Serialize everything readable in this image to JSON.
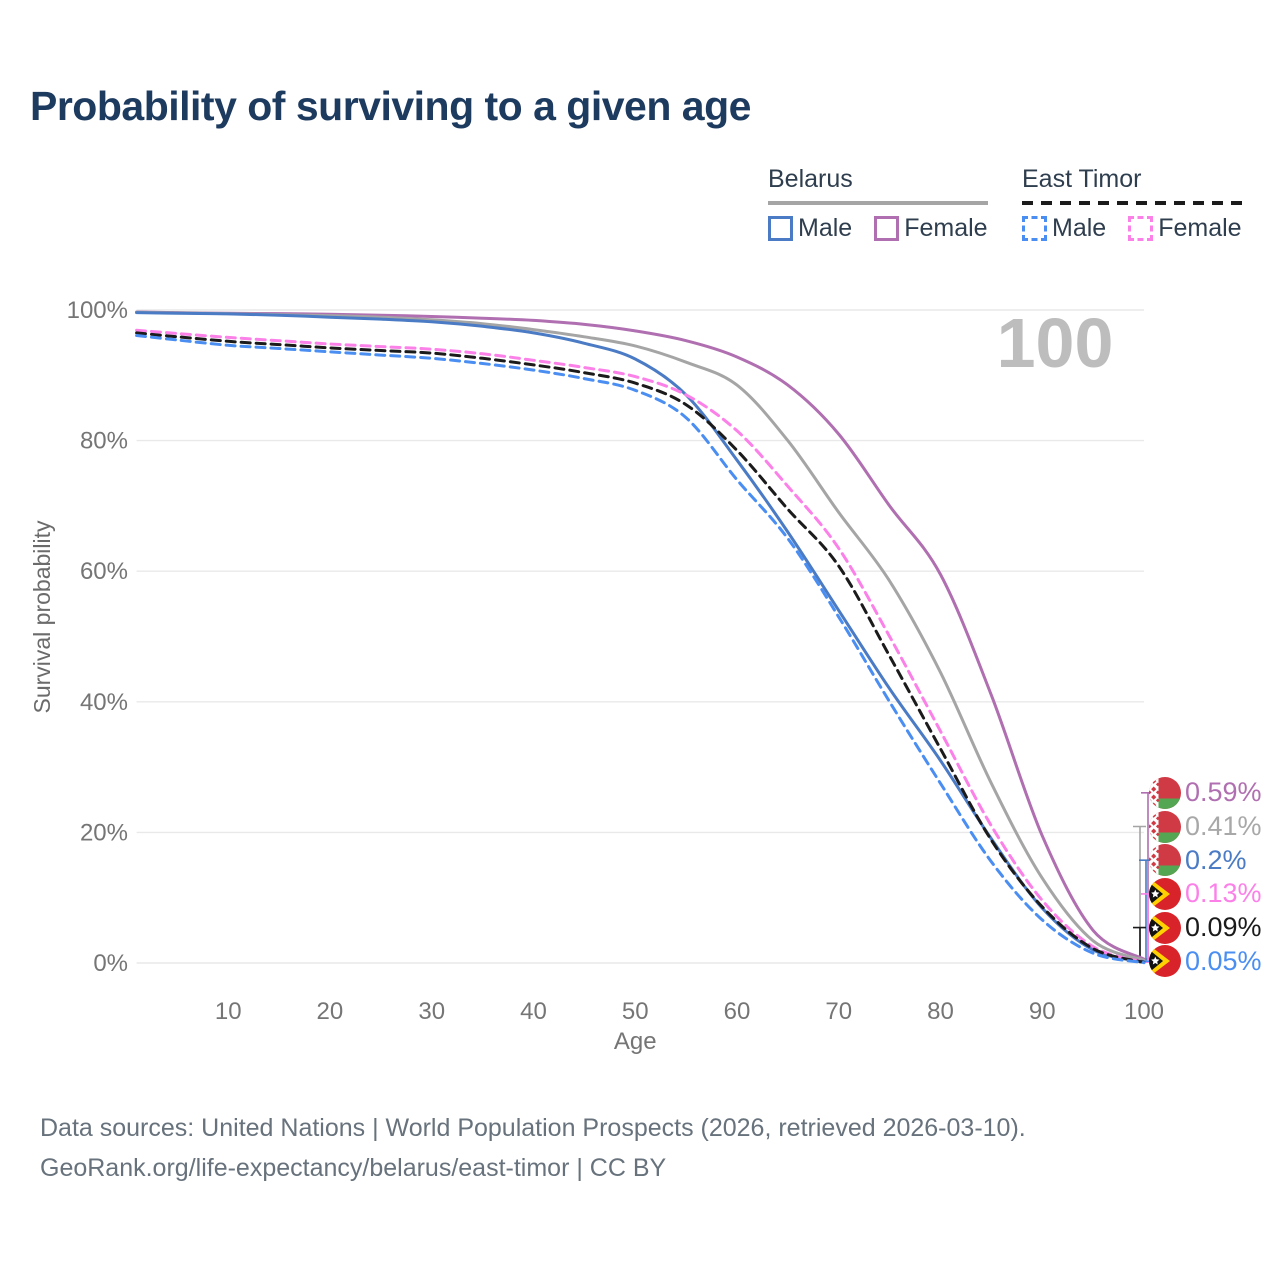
{
  "title": "Probability of surviving to a given age",
  "legend": {
    "groups": [
      {
        "country": "Belarus",
        "line_style": "solid",
        "underline_color": "#a5a5a5",
        "items": [
          {
            "label": "Male",
            "color": "#4a7bc4",
            "dashed": false
          },
          {
            "label": "Female",
            "color": "#b06fb0",
            "dashed": false
          }
        ]
      },
      {
        "country": "East Timor",
        "line_style": "dashed",
        "underline_color": "#1b1b1b",
        "items": [
          {
            "label": "Male",
            "color": "#4b8ef2",
            "dashed": true
          },
          {
            "label": "Female",
            "color": "#fb80e8",
            "dashed": true
          }
        ]
      }
    ]
  },
  "chart_data": {
    "type": "line",
    "title": "Probability of surviving to a given age",
    "xlabel": "Age",
    "ylabel": "Survival probability",
    "xlim": [
      1,
      100
    ],
    "ylim": [
      0,
      100
    ],
    "xticks": [
      10,
      20,
      30,
      40,
      50,
      60,
      70,
      80,
      90,
      100
    ],
    "yticks": [
      0,
      20,
      40,
      60,
      80,
      100
    ],
    "ytick_suffix": "%",
    "grid": "horizontal",
    "hover_age_label": "100",
    "hover_age_color": "#bdbdbd",
    "ages": [
      1,
      5,
      10,
      15,
      20,
      25,
      30,
      35,
      40,
      45,
      50,
      55,
      60,
      65,
      70,
      75,
      80,
      85,
      90,
      95,
      100
    ],
    "series": [
      {
        "name": "Belarus Female",
        "country": "Belarus",
        "sex": "Female",
        "flag": "belarus",
        "color": "#b06fb0",
        "dashed": false,
        "values": [
          99.7,
          99.6,
          99.5,
          99.45,
          99.35,
          99.2,
          99.0,
          98.75,
          98.4,
          97.8,
          96.8,
          95.3,
          92.8,
          88.5,
          81.0,
          70.0,
          59.5,
          41.0,
          19.5,
          5.0,
          0.59
        ],
        "end_label": "0.59%",
        "end_label_color": "#b06fb0"
      },
      {
        "name": "Belarus Both sexes",
        "country": "Belarus",
        "sex": "Both",
        "flag": "belarus",
        "color": "#a5a5a5",
        "dashed": false,
        "values": [
          99.65,
          99.55,
          99.45,
          99.3,
          99.15,
          98.9,
          98.5,
          97.9,
          97.0,
          95.9,
          94.5,
          92.0,
          88.5,
          80.0,
          69.0,
          58.5,
          44.5,
          27.5,
          13.0,
          3.4,
          0.41
        ],
        "end_label": "0.41%",
        "end_label_color": "#a8a8a8"
      },
      {
        "name": "Belarus Male",
        "country": "Belarus",
        "sex": "Male",
        "flag": "belarus",
        "color": "#4a7bc4",
        "dashed": false,
        "values": [
          99.6,
          99.5,
          99.4,
          99.2,
          98.9,
          98.6,
          98.2,
          97.5,
          96.5,
          94.9,
          92.5,
          87.0,
          77.0,
          66.0,
          54.0,
          42.0,
          31.0,
          19.0,
          8.4,
          2.0,
          0.2
        ],
        "end_label": "0.2%",
        "end_label_color": "#4a7bc4"
      },
      {
        "name": "East Timor Female",
        "country": "East Timor",
        "sex": "Female",
        "flag": "east-timor",
        "color": "#fb80e8",
        "dashed": true,
        "values": [
          96.9,
          96.4,
          95.8,
          95.3,
          94.8,
          94.4,
          94.0,
          93.3,
          92.3,
          91.2,
          89.8,
          87.0,
          81.5,
          73.0,
          63.5,
          50.0,
          35.5,
          21.0,
          9.6,
          2.5,
          0.13
        ],
        "end_label": "0.13%",
        "end_label_color": "#fb80e8"
      },
      {
        "name": "East Timor Both sexes",
        "country": "East Timor",
        "sex": "Both",
        "flag": "east-timor",
        "color": "#1b1b1b",
        "dashed": true,
        "values": [
          96.5,
          95.9,
          95.2,
          94.7,
          94.2,
          93.8,
          93.4,
          92.6,
          91.6,
          90.4,
          88.8,
          85.5,
          78.5,
          69.5,
          60.8,
          47.0,
          32.8,
          18.8,
          8.6,
          2.2,
          0.09
        ],
        "end_label": "0.09%",
        "end_label_color": "#1b1b1b"
      },
      {
        "name": "East Timor Male",
        "country": "East Timor",
        "sex": "Male",
        "flag": "east-timor",
        "color": "#4b8ef2",
        "dashed": true,
        "values": [
          96.1,
          95.4,
          94.6,
          94.1,
          93.6,
          93.1,
          92.6,
          91.8,
          90.8,
          89.5,
          87.7,
          83.5,
          74.0,
          65.0,
          53.0,
          40.0,
          27.5,
          15.5,
          6.6,
          1.5,
          0.05
        ],
        "end_label": "0.05%",
        "end_label_color": "#4b8ef2"
      }
    ]
  },
  "footer": {
    "line1": "Data sources: United Nations | World Population Prospects (2026, retrieved 2026-03-10).",
    "line2": "GeoRank.org/life-expectancy/belarus/east-timor | CC BY"
  }
}
